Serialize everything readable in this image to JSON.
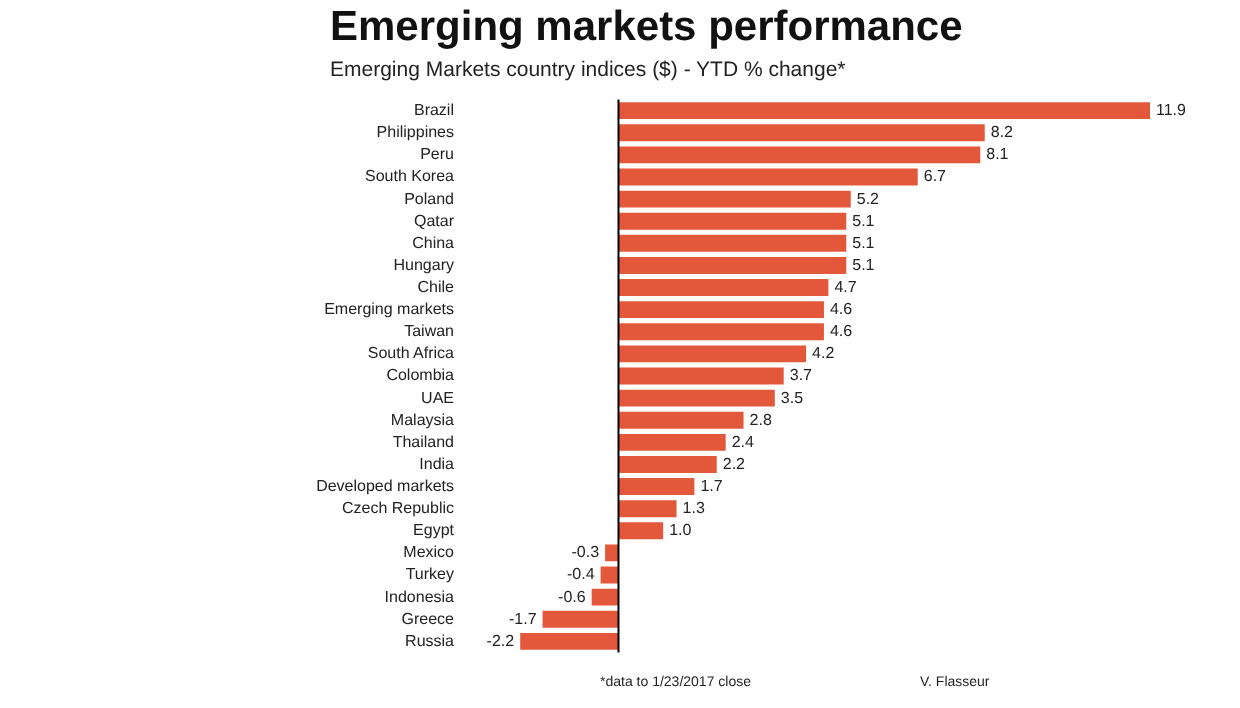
{
  "chart_data": {
    "type": "bar",
    "orientation": "horizontal",
    "title": "Emerging markets performance",
    "subtitle": "Emerging Markets country indices ($) - YTD % change*",
    "categories": [
      "Brazil",
      "Philippines",
      "Peru",
      "South Korea",
      "Poland",
      "Qatar",
      "China",
      "Hungary",
      "Chile",
      "Emerging markets",
      "Taiwan",
      "South Africa",
      "Colombia",
      "UAE",
      "Malaysia",
      "Thailand",
      "India",
      "Developed markets",
      "Czech Republic",
      "Egypt",
      "Mexico",
      "Turkey",
      "Indonesia",
      "Greece",
      "Russia"
    ],
    "values": [
      11.9,
      8.2,
      8.1,
      6.7,
      5.2,
      5.1,
      5.1,
      5.1,
      4.7,
      4.6,
      4.6,
      4.2,
      3.7,
      3.5,
      2.8,
      2.4,
      2.2,
      1.7,
      1.3,
      1.0,
      -0.3,
      -0.4,
      -0.6,
      -1.7,
      -2.2
    ],
    "value_labels": [
      "11.9",
      "8.2",
      "8.1",
      "6.7",
      "5.2",
      "5.1",
      "5.1",
      "5.1",
      "4.7",
      "4.6",
      "4.6",
      "4.2",
      "3.7",
      "3.5",
      "2.8",
      "2.4",
      "2.2",
      "1.7",
      "1.3",
      "1.0",
      "-0.3",
      "-0.4",
      "-0.6",
      "-1.7",
      "-2.2"
    ],
    "color": "#e3573a",
    "annotations": [
      "*data to 1/23/2017 close",
      "V. Flasseur"
    ]
  }
}
